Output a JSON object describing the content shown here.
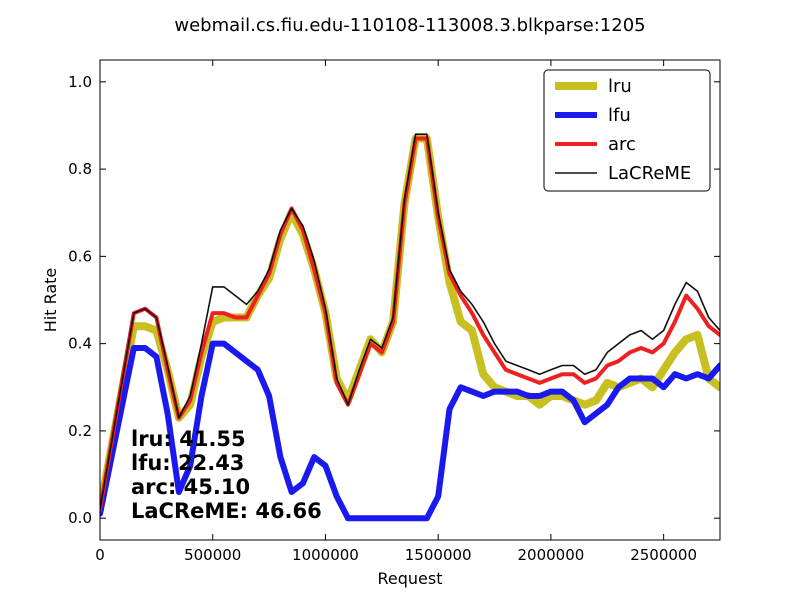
{
  "chart_data": {
    "type": "line",
    "title": "webmail.cs.fiu.edu-110108-113008.3.blkparse:1205",
    "xlabel": "Request",
    "ylabel": "Hit Rate",
    "xlim": [
      0,
      2750000
    ],
    "ylim": [
      -0.05,
      1.05
    ],
    "xticks": [
      0,
      500000,
      1000000,
      1500000,
      2000000,
      2500000
    ],
    "xtick_labels": [
      "0",
      "500000",
      "1000000",
      "1500000",
      "2000000",
      "2500000"
    ],
    "yticks": [
      0.0,
      0.2,
      0.4,
      0.6,
      0.8,
      1.0
    ],
    "ytick_labels": [
      "0.0",
      "0.2",
      "0.4",
      "0.6",
      "0.8",
      "1.0"
    ],
    "grid": false,
    "legend_position": "top-right",
    "series": [
      {
        "name": "lru",
        "color": "#c8c020",
        "x": [
          0,
          150000,
          200000,
          250000,
          300000,
          350000,
          400000,
          450000,
          500000,
          550000,
          600000,
          650000,
          700000,
          750000,
          800000,
          850000,
          900000,
          950000,
          1000000,
          1050000,
          1100000,
          1150000,
          1200000,
          1250000,
          1300000,
          1350000,
          1400000,
          1450000,
          1500000,
          1550000,
          1600000,
          1650000,
          1700000,
          1750000,
          1800000,
          1850000,
          1900000,
          1950000,
          2000000,
          2050000,
          2100000,
          2150000,
          2200000,
          2250000,
          2300000,
          2350000,
          2400000,
          2450000,
          2500000,
          2550000,
          2600000,
          2650000,
          2700000,
          2750000
        ],
        "values": [
          0.02,
          0.44,
          0.44,
          0.43,
          0.34,
          0.23,
          0.26,
          0.37,
          0.45,
          0.46,
          0.46,
          0.46,
          0.51,
          0.55,
          0.64,
          0.7,
          0.65,
          0.57,
          0.47,
          0.32,
          0.27,
          0.34,
          0.41,
          0.38,
          0.45,
          0.72,
          0.87,
          0.87,
          0.69,
          0.54,
          0.45,
          0.43,
          0.33,
          0.3,
          0.29,
          0.28,
          0.28,
          0.26,
          0.28,
          0.28,
          0.27,
          0.26,
          0.27,
          0.31,
          0.3,
          0.31,
          0.32,
          0.3,
          0.34,
          0.38,
          0.41,
          0.42,
          0.32,
          0.3
        ]
      },
      {
        "name": "lfu",
        "color": "#1a1aee",
        "x": [
          0,
          150000,
          200000,
          250000,
          300000,
          350000,
          400000,
          450000,
          500000,
          550000,
          600000,
          650000,
          700000,
          750000,
          800000,
          850000,
          900000,
          950000,
          1000000,
          1050000,
          1100000,
          1150000,
          1200000,
          1250000,
          1300000,
          1350000,
          1400000,
          1450000,
          1500000,
          1550000,
          1600000,
          1650000,
          1700000,
          1750000,
          1800000,
          1850000,
          1900000,
          1950000,
          2000000,
          2050000,
          2100000,
          2150000,
          2200000,
          2250000,
          2300000,
          2350000,
          2400000,
          2450000,
          2500000,
          2550000,
          2600000,
          2650000,
          2700000,
          2750000
        ],
        "values": [
          0.01,
          0.39,
          0.39,
          0.37,
          0.24,
          0.06,
          0.12,
          0.28,
          0.4,
          0.4,
          0.38,
          0.36,
          0.34,
          0.28,
          0.14,
          0.06,
          0.08,
          0.14,
          0.12,
          0.05,
          0.0,
          0.0,
          0.0,
          0.0,
          0.0,
          0.0,
          0.0,
          0.0,
          0.05,
          0.25,
          0.3,
          0.29,
          0.28,
          0.29,
          0.29,
          0.29,
          0.28,
          0.28,
          0.29,
          0.29,
          0.27,
          0.22,
          0.24,
          0.26,
          0.3,
          0.32,
          0.32,
          0.32,
          0.3,
          0.33,
          0.32,
          0.33,
          0.32,
          0.35
        ]
      },
      {
        "name": "arc",
        "color": "#ee2020",
        "x": [
          0,
          150000,
          200000,
          250000,
          300000,
          350000,
          400000,
          450000,
          500000,
          550000,
          600000,
          650000,
          700000,
          750000,
          800000,
          850000,
          900000,
          950000,
          1000000,
          1050000,
          1100000,
          1150000,
          1200000,
          1250000,
          1300000,
          1350000,
          1400000,
          1450000,
          1500000,
          1550000,
          1600000,
          1650000,
          1700000,
          1750000,
          1800000,
          1850000,
          1900000,
          1950000,
          2000000,
          2050000,
          2100000,
          2150000,
          2200000,
          2250000,
          2300000,
          2350000,
          2400000,
          2450000,
          2500000,
          2550000,
          2600000,
          2650000,
          2700000,
          2750000
        ],
        "values": [
          0.02,
          0.47,
          0.48,
          0.46,
          0.34,
          0.23,
          0.27,
          0.38,
          0.47,
          0.47,
          0.46,
          0.46,
          0.51,
          0.56,
          0.65,
          0.71,
          0.66,
          0.57,
          0.47,
          0.31,
          0.26,
          0.33,
          0.4,
          0.38,
          0.45,
          0.72,
          0.87,
          0.87,
          0.69,
          0.56,
          0.51,
          0.47,
          0.42,
          0.38,
          0.34,
          0.33,
          0.32,
          0.31,
          0.32,
          0.33,
          0.33,
          0.31,
          0.32,
          0.35,
          0.36,
          0.38,
          0.39,
          0.38,
          0.4,
          0.45,
          0.51,
          0.48,
          0.44,
          0.42
        ]
      },
      {
        "name": "LaCReME",
        "color": "#111111",
        "x": [
          0,
          150000,
          200000,
          250000,
          300000,
          350000,
          400000,
          450000,
          500000,
          550000,
          600000,
          650000,
          700000,
          750000,
          800000,
          850000,
          900000,
          950000,
          1000000,
          1050000,
          1100000,
          1150000,
          1200000,
          1250000,
          1300000,
          1350000,
          1400000,
          1450000,
          1500000,
          1550000,
          1600000,
          1650000,
          1700000,
          1750000,
          1800000,
          1850000,
          1900000,
          1950000,
          2000000,
          2050000,
          2100000,
          2150000,
          2200000,
          2250000,
          2300000,
          2350000,
          2400000,
          2450000,
          2500000,
          2550000,
          2600000,
          2650000,
          2700000,
          2750000
        ],
        "values": [
          0.02,
          0.47,
          0.48,
          0.46,
          0.35,
          0.23,
          0.28,
          0.4,
          0.53,
          0.53,
          0.51,
          0.49,
          0.52,
          0.57,
          0.66,
          0.71,
          0.67,
          0.59,
          0.48,
          0.32,
          0.26,
          0.34,
          0.41,
          0.39,
          0.46,
          0.73,
          0.88,
          0.88,
          0.7,
          0.57,
          0.52,
          0.49,
          0.45,
          0.4,
          0.36,
          0.35,
          0.34,
          0.33,
          0.34,
          0.35,
          0.35,
          0.33,
          0.34,
          0.38,
          0.4,
          0.42,
          0.43,
          0.41,
          0.43,
          0.49,
          0.54,
          0.52,
          0.46,
          0.43
        ]
      }
    ],
    "annotations": [
      {
        "label": "lru:",
        "value": "41.55"
      },
      {
        "label": "lfu:",
        "value": "22.43"
      },
      {
        "label": "arc:",
        "value": "45.10"
      },
      {
        "label": "LaCReME:",
        "value": "46.66"
      }
    ]
  }
}
